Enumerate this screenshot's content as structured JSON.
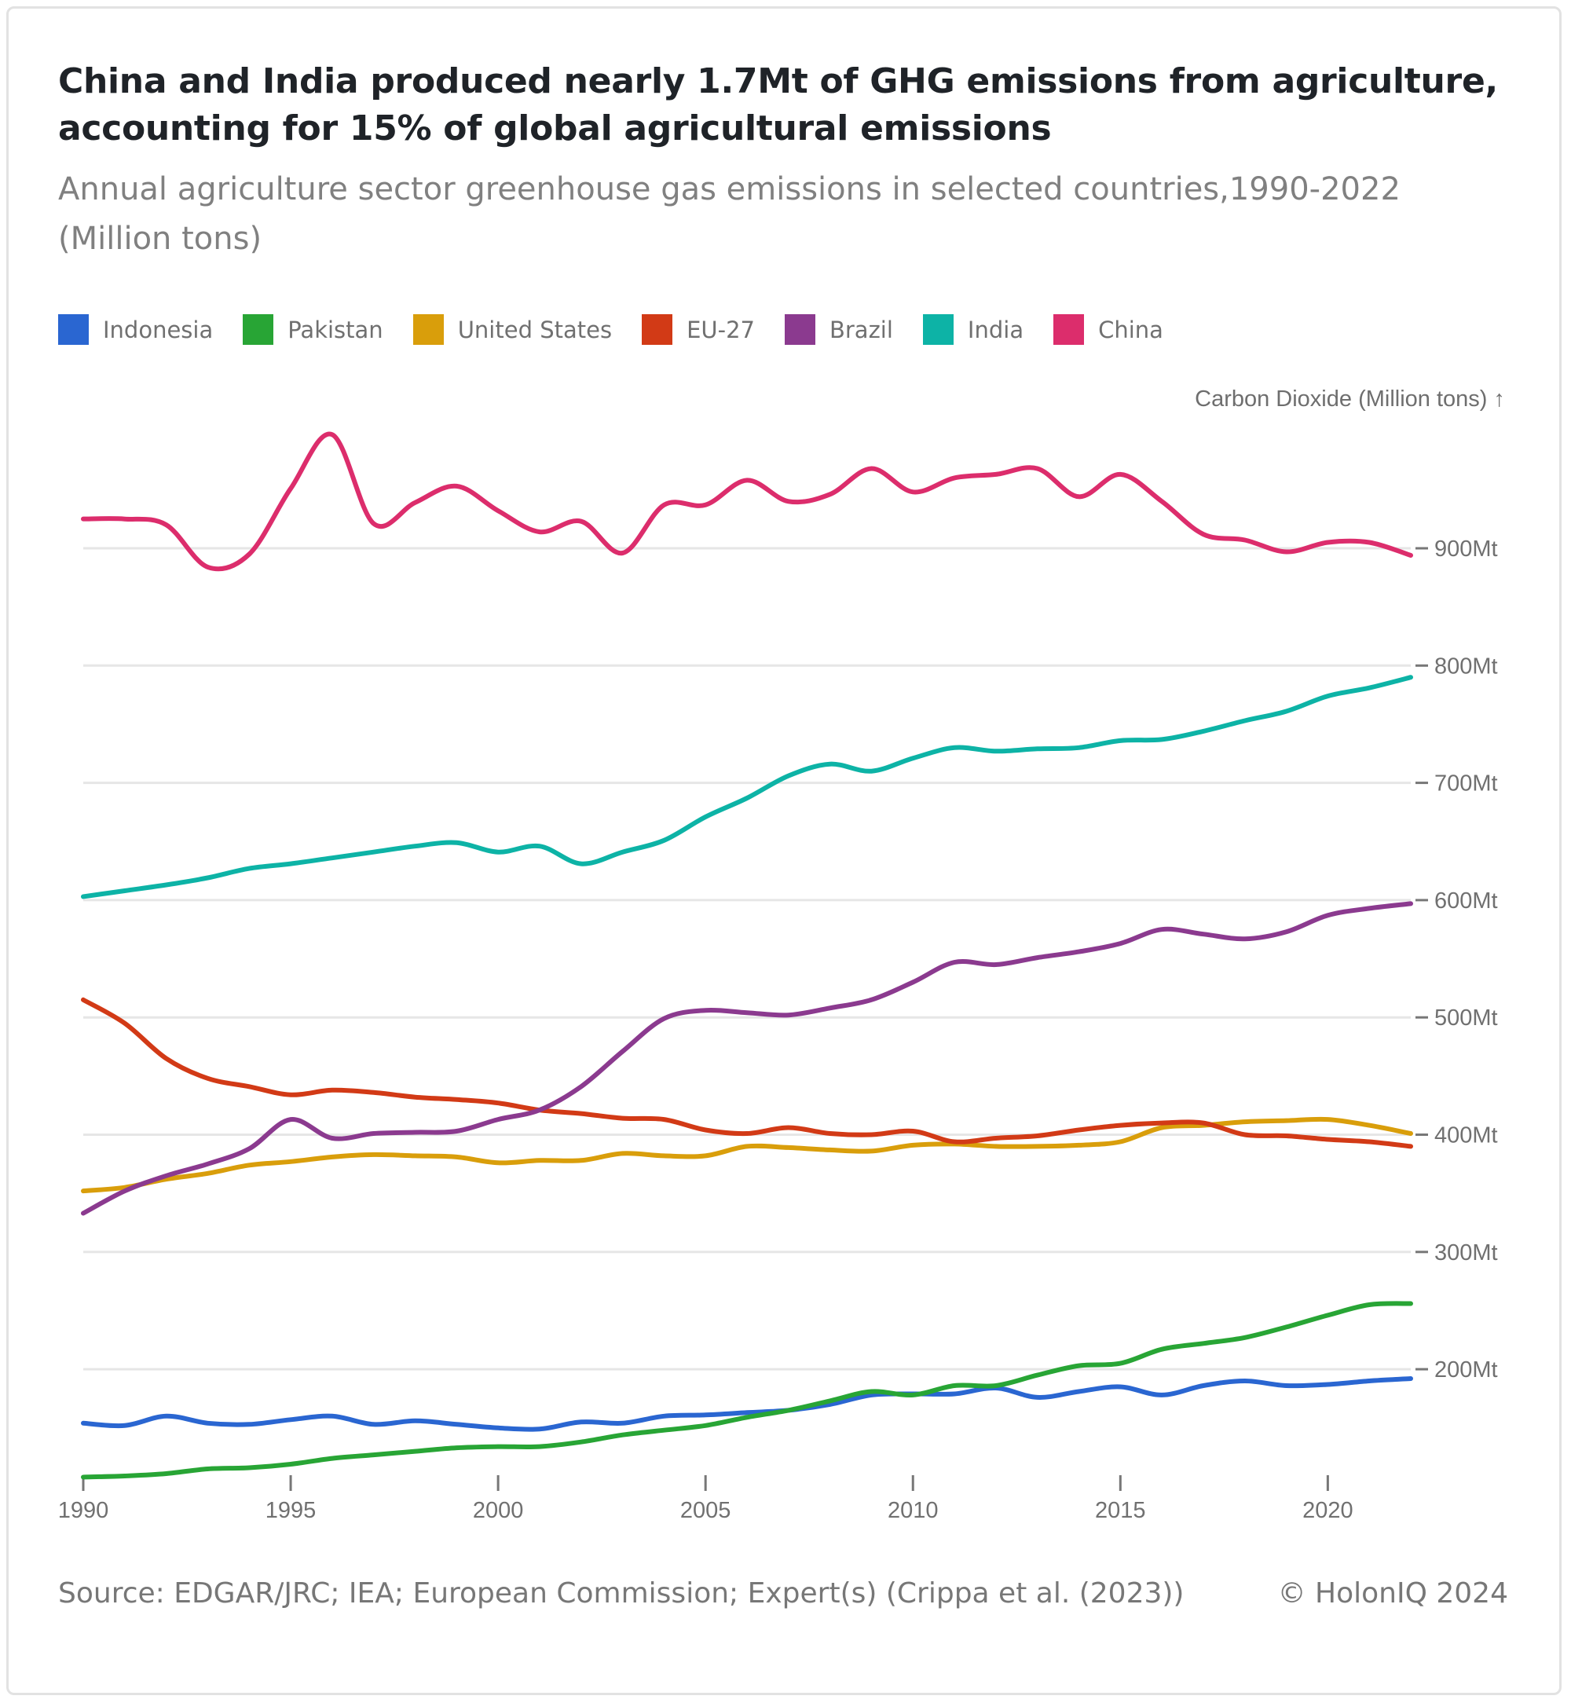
{
  "title": "China and India produced nearly 1.7Mt of GHG emissions from agriculture, accounting for 15% of global agricultural emissions",
  "subtitle": "Annual agriculture sector greenhouse gas emissions in selected countries,1990-2022 (Million tons)",
  "footer": {
    "source": "Source: EDGAR/JRC; IEA; European Commission; Expert(s) (Crippa et al. (2023))",
    "copyright": "© HolonIQ 2024"
  },
  "chart_data": {
    "type": "line",
    "title": "China and India produced nearly 1.7Mt of GHG emissions from agriculture, accounting for 15% of global agricultural emissions",
    "subtitle": "Annual agriculture sector greenhouse gas emissions in selected countries,1990-2022 (Million tons)",
    "xlabel": "",
    "ylabel": "Carbon Dioxide (Million tons) ↑",
    "y_axis_position": "right",
    "ylim": [
      108,
      1000
    ],
    "xlim": [
      1990,
      2022
    ],
    "grid": true,
    "legend_position": "top-left",
    "x_ticks": [
      1990,
      1995,
      2000,
      2005,
      2010,
      2015,
      2020
    ],
    "x_tick_labels": [
      "1990",
      "1995",
      "2000",
      "2005",
      "2010",
      "2015",
      "2020"
    ],
    "y_ticks": [
      200,
      300,
      400,
      500,
      600,
      700,
      800,
      900
    ],
    "y_tick_labels": [
      "200Mt",
      "300Mt",
      "400Mt",
      "500Mt",
      "600Mt",
      "700Mt",
      "800Mt",
      "900Mt"
    ],
    "x": [
      1990,
      1991,
      1992,
      1993,
      1994,
      1995,
      1996,
      1997,
      1998,
      1999,
      2000,
      2001,
      2002,
      2003,
      2004,
      2005,
      2006,
      2007,
      2008,
      2009,
      2010,
      2011,
      2012,
      2013,
      2014,
      2015,
      2016,
      2017,
      2018,
      2019,
      2020,
      2021,
      2022
    ],
    "series": [
      {
        "name": "Indonesia",
        "color": "#2a66d1",
        "values": [
          154,
          152,
          160,
          154,
          153,
          157,
          160,
          153,
          156,
          153,
          150,
          149,
          155,
          154,
          160,
          161,
          163,
          165,
          170,
          178,
          179,
          179,
          184,
          176,
          181,
          185,
          178,
          186,
          190,
          186,
          187,
          190,
          192
        ]
      },
      {
        "name": "Pakistan",
        "color": "#28a535",
        "values": [
          108,
          109,
          111,
          115,
          116,
          119,
          124,
          127,
          130,
          133,
          134,
          134,
          138,
          144,
          148,
          152,
          159,
          165,
          173,
          181,
          178,
          186,
          186,
          195,
          203,
          205,
          217,
          222,
          227,
          236,
          246,
          255,
          256
        ]
      },
      {
        "name": "United States",
        "color": "#d99e0b",
        "values": [
          352,
          355,
          362,
          367,
          374,
          377,
          381,
          383,
          382,
          381,
          376,
          378,
          378,
          384,
          382,
          382,
          390,
          389,
          387,
          386,
          391,
          392,
          390,
          390,
          391,
          394,
          406,
          408,
          411,
          412,
          413,
          408,
          401
        ]
      },
      {
        "name": "EU-27",
        "color": "#d23a16",
        "values": [
          515,
          495,
          465,
          448,
          441,
          434,
          438,
          436,
          432,
          430,
          427,
          421,
          418,
          414,
          413,
          404,
          401,
          406,
          401,
          400,
          403,
          394,
          397,
          399,
          404,
          408,
          410,
          410,
          400,
          399,
          396,
          394,
          390
        ]
      },
      {
        "name": "Brazil",
        "color": "#8b3a8f",
        "values": [
          333,
          352,
          365,
          375,
          388,
          413,
          397,
          401,
          402,
          403,
          413,
          421,
          441,
          471,
          499,
          506,
          504,
          502,
          508,
          515,
          530,
          547,
          545,
          551,
          556,
          563,
          575,
          571,
          567,
          573,
          587,
          593,
          597
        ]
      },
      {
        "name": "India",
        "color": "#0db3a6",
        "values": [
          603,
          608,
          613,
          619,
          627,
          631,
          636,
          641,
          646,
          649,
          641,
          646,
          631,
          641,
          651,
          671,
          687,
          706,
          716,
          710,
          721,
          730,
          727,
          729,
          730,
          736,
          737,
          744,
          753,
          761,
          774,
          781,
          790
        ]
      },
      {
        "name": "China",
        "color": "#dc2d6c",
        "values": [
          925,
          925,
          920,
          884,
          895,
          951,
          997,
          921,
          939,
          953,
          932,
          914,
          923,
          896,
          937,
          937,
          958,
          940,
          946,
          968,
          948,
          960,
          963,
          968,
          944,
          963,
          940,
          912,
          907,
          897,
          905,
          905,
          894
        ]
      }
    ]
  }
}
